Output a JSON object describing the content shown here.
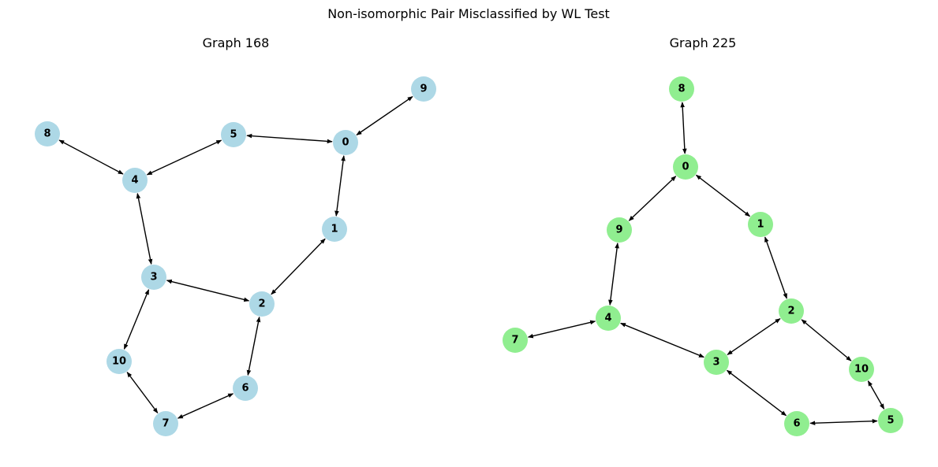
{
  "title": "Non-isomorphic Pair Misclassified by WL Test",
  "colors": {
    "graph1_node": "#add8e6",
    "graph2_node": "#90ee90",
    "edge": "#000000"
  },
  "graphs": [
    {
      "title": "Graph 168",
      "nodes": [
        "0",
        "1",
        "2",
        "3",
        "4",
        "5",
        "6",
        "7",
        "8",
        "9",
        "10"
      ],
      "edges": [
        [
          "0",
          "9"
        ],
        [
          "0",
          "5"
        ],
        [
          "0",
          "1"
        ],
        [
          "5",
          "4"
        ],
        [
          "8",
          "4"
        ],
        [
          "4",
          "3"
        ],
        [
          "1",
          "2"
        ],
        [
          "3",
          "2"
        ],
        [
          "2",
          "6"
        ],
        [
          "3",
          "10"
        ],
        [
          "10",
          "7"
        ],
        [
          "7",
          "6"
        ]
      ]
    },
    {
      "title": "Graph 225",
      "nodes": [
        "0",
        "1",
        "2",
        "3",
        "4",
        "5",
        "6",
        "7",
        "8",
        "9",
        "10"
      ],
      "edges": [
        [
          "8",
          "0"
        ],
        [
          "0",
          "9"
        ],
        [
          "0",
          "1"
        ],
        [
          "9",
          "4"
        ],
        [
          "1",
          "2"
        ],
        [
          "7",
          "4"
        ],
        [
          "4",
          "3"
        ],
        [
          "2",
          "3"
        ],
        [
          "2",
          "10"
        ],
        [
          "3",
          "6"
        ],
        [
          "10",
          "5"
        ],
        [
          "6",
          "5"
        ]
      ]
    }
  ]
}
